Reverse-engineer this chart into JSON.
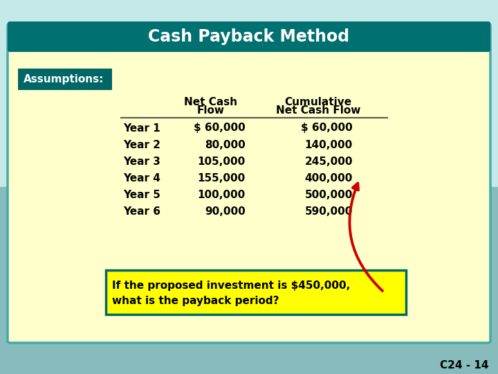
{
  "title": "Cash Payback Method",
  "title_bg": "#007070",
  "title_color": "#ffffff",
  "main_bg": "#ffffcc",
  "outer_bg_top": "#aadddd",
  "outer_bg_bot": "#88bbbb",
  "assumptions_label": "Assumptions:",
  "assumptions_bg": "#006666",
  "assumptions_color": "#ffffff",
  "col1_header_line1": "Net Cash",
  "col1_header_line2": "Flow",
  "col2_header_line1": "Cumulative",
  "col2_header_line2": "Net Cash Flow",
  "rows": [
    [
      "Year 1",
      "$ 60,000",
      "$ 60,000"
    ],
    [
      "Year 2",
      "80,000",
      "140,000"
    ],
    [
      "Year 3",
      "105,000",
      "245,000"
    ],
    [
      "Year 4",
      "155,000",
      "400,000"
    ],
    [
      "Year 5",
      "100,000",
      "500,000"
    ],
    [
      "Year 6",
      "90,000",
      "590,000"
    ]
  ],
  "question_line1": "If the proposed investment is $450,000,",
  "question_line2": "what is the payback period?",
  "question_bg": "#ffff00",
  "question_border": "#006666",
  "slide_number": "C24 - 14",
  "arrow_color": "#cc0000",
  "header_line_color": "#555555",
  "text_color": "#000000"
}
